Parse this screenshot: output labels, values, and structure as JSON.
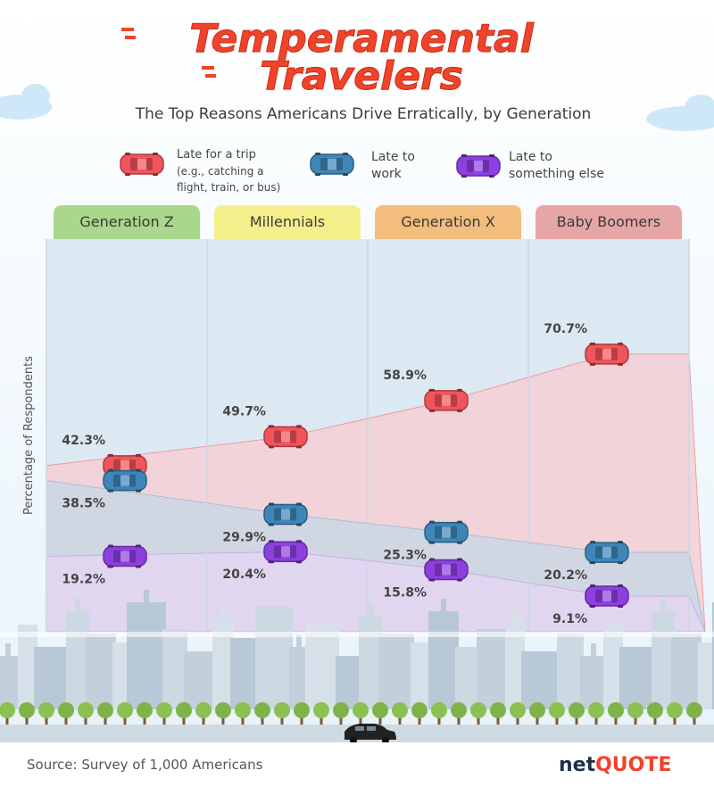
{
  "header": {
    "title_line1": "Temperamental",
    "title_line2": "Travelers",
    "subtitle": "The Top Reasons Americans Drive Erratically, by Generation"
  },
  "legend": [
    {
      "lines": [
        "Late for a trip",
        "(e.g., catching a",
        "flight, train, or bus)"
      ],
      "color": "#f2545b"
    },
    {
      "lines": [
        "Late to",
        "work"
      ],
      "color": "#3f86b8"
    },
    {
      "lines": [
        "Late to",
        "something else"
      ],
      "color": "#8e3fe0"
    }
  ],
  "footer": {
    "source": "Source: Survey of 1,000 Americans",
    "brand_part1": "net",
    "brand_part2": "QUOTE"
  },
  "colors": {
    "trip": "#f2545b",
    "work": "#3f86b8",
    "else": "#8e3fe0",
    "title": "#f0432a"
  },
  "chart_data": {
    "type": "line",
    "ylabel": "Percentage of Respondents",
    "ylim": [
      0,
      100
    ],
    "categories": [
      "Generation Z",
      "Millennials",
      "Generation X",
      "Baby Boomers"
    ],
    "category_colors": [
      "#a9d88c",
      "#f4ef8a",
      "#f3bd7d",
      "#e6a6a6"
    ],
    "series": [
      {
        "name": "Late for a trip",
        "key": "trip",
        "values": [
          42.3,
          49.7,
          58.9,
          70.7
        ],
        "labels": [
          "42.3%",
          "49.7%",
          "58.9%",
          "70.7%"
        ]
      },
      {
        "name": "Late to work",
        "key": "work",
        "values": [
          38.5,
          29.9,
          25.3,
          20.2
        ],
        "labels": [
          "38.5%",
          "29.9%",
          "25.3%",
          "20.2%"
        ]
      },
      {
        "name": "Late to something else",
        "key": "else",
        "values": [
          19.2,
          20.4,
          15.8,
          9.1
        ],
        "labels": [
          "19.2%",
          "20.4%",
          "15.8%",
          "9.1%"
        ]
      }
    ]
  }
}
